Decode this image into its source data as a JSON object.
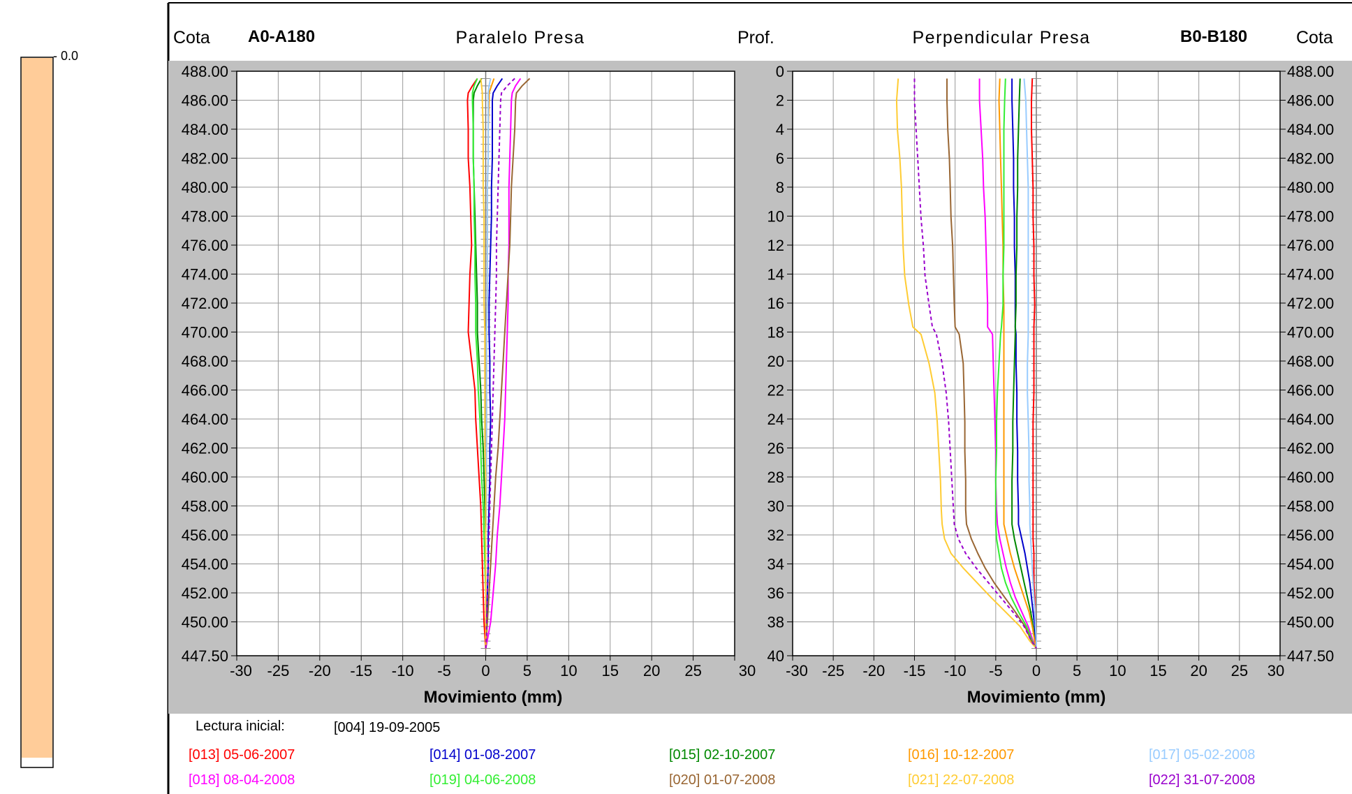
{
  "header": {
    "left_axis_label": "Cota",
    "left_sensor": "A0-A180",
    "left_title": "Paralelo Presa",
    "depth_label": "Prof.",
    "right_title": "Perpendicular Presa",
    "right_sensor": "B0-B180",
    "right_axis_label": "Cota"
  },
  "scale_bar": {
    "label": "- 0.0",
    "color": "#FFCC99"
  },
  "legend": {
    "initial_label": "Lectura inicial:",
    "initial_value": "[004]  19-09-2005"
  },
  "chart_data": [
    {
      "type": "line",
      "name": "Paralelo Presa",
      "title": "",
      "xlabel": "Movimiento (mm)",
      "ylabel": "Cota",
      "xlim": [
        -30,
        30
      ],
      "ylim": [
        447.5,
        488.0
      ],
      "xticks": [
        "-30",
        "-25",
        "-20",
        "-15",
        "-10",
        "-5",
        "0",
        "5",
        "10",
        "15",
        "20",
        "25",
        "30"
      ],
      "yticks": [
        "488.00",
        "486.00",
        "484.00",
        "482.00",
        "480.00",
        "478.00",
        "476.00",
        "474.00",
        "472.00",
        "470.00",
        "468.00",
        "466.00",
        "464.00",
        "462.00",
        "460.00",
        "458.00",
        "456.00",
        "454.00",
        "452.00",
        "450.00",
        "447.50"
      ],
      "grid": true,
      "y": [
        487.5,
        487.0,
        486.5,
        486.0,
        484.0,
        482.0,
        480.0,
        478.0,
        476.0,
        474.0,
        472.0,
        470.0,
        468.0,
        466.0,
        464.0,
        462.0,
        460.0,
        458.0,
        456.0,
        454.0,
        452.0,
        450.0,
        449.0,
        448.0
      ],
      "series": [
        {
          "id": "013",
          "date": "05-06-2007",
          "color": "#FF0000",
          "dashed": false,
          "values": [
            -1.0,
            -1.6,
            -2.1,
            -2.2,
            -2.1,
            -2.1,
            -1.9,
            -1.8,
            -1.7,
            -1.9,
            -2.0,
            -2.1,
            -1.7,
            -1.3,
            -1.2,
            -1.0,
            -0.8,
            -0.6,
            -0.5,
            -0.4,
            -0.3,
            -0.2,
            -0.1,
            0.0
          ]
        },
        {
          "id": "014",
          "date": "01-08-2007",
          "color": "#0000CC",
          "dashed": false,
          "values": [
            2.0,
            1.4,
            0.9,
            0.8,
            0.8,
            0.8,
            0.7,
            0.7,
            0.6,
            0.5,
            0.4,
            0.4,
            0.5,
            0.5,
            0.6,
            0.5,
            0.5,
            0.4,
            0.3,
            0.3,
            0.2,
            0.1,
            0.1,
            0.0
          ]
        },
        {
          "id": "015",
          "date": "02-10-2007",
          "color": "#008800",
          "dashed": false,
          "values": [
            -0.5,
            -1.0,
            -1.4,
            -1.5,
            -1.5,
            -1.5,
            -1.4,
            -1.3,
            -1.2,
            -1.1,
            -1.0,
            -1.0,
            -0.8,
            -0.6,
            -0.5,
            -0.3,
            -0.2,
            -0.1,
            0.0,
            0.0,
            0.0,
            0.0,
            0.0,
            0.0
          ]
        },
        {
          "id": "016",
          "date": "10-12-2007",
          "color": "#FF9900",
          "dashed": false,
          "values": [
            1.0,
            0.7,
            0.4,
            0.4,
            0.3,
            0.3,
            0.2,
            0.2,
            0.2,
            0.2,
            0.2,
            0.1,
            0.1,
            0.1,
            0.1,
            0.1,
            0.1,
            0.0,
            0.0,
            0.0,
            0.0,
            0.0,
            0.0,
            0.0
          ]
        },
        {
          "id": "017",
          "date": "05-02-2008",
          "color": "#99CCFF",
          "dashed": false,
          "values": [
            0.6,
            0.4,
            0.3,
            0.3,
            0.3,
            0.3,
            0.2,
            0.2,
            0.2,
            0.2,
            0.2,
            0.1,
            0.1,
            0.1,
            0.1,
            0.1,
            0.1,
            0.1,
            0.0,
            0.0,
            0.0,
            0.0,
            0.0,
            0.0
          ]
        },
        {
          "id": "018",
          "date": "08-04-2008",
          "color": "#FF00FF",
          "dashed": false,
          "values": [
            4.2,
            3.6,
            3.2,
            3.1,
            3.0,
            2.9,
            2.8,
            2.8,
            2.8,
            2.7,
            2.7,
            2.6,
            2.5,
            2.4,
            2.3,
            2.1,
            1.9,
            1.7,
            1.4,
            1.2,
            0.9,
            0.6,
            0.3,
            0.0
          ]
        },
        {
          "id": "019",
          "date": "04-06-2008",
          "color": "#33EE33",
          "dashed": false,
          "values": [
            -1.0,
            -1.4,
            -1.6,
            -1.6,
            -1.5,
            -1.5,
            -1.4,
            -1.4,
            -1.3,
            -1.3,
            -1.2,
            -1.2,
            -1.0,
            -0.9,
            -0.7,
            -0.6,
            -0.5,
            -0.3,
            -0.2,
            -0.1,
            0.0,
            0.0,
            0.0,
            0.0
          ]
        },
        {
          "id": "020",
          "date": "01-07-2008",
          "color": "#996633",
          "dashed": false,
          "values": [
            5.3,
            4.4,
            3.7,
            3.6,
            3.5,
            3.3,
            3.1,
            3.0,
            2.9,
            2.7,
            2.5,
            2.3,
            2.1,
            1.9,
            1.7,
            1.5,
            1.2,
            1.0,
            0.8,
            0.6,
            0.4,
            0.2,
            0.1,
            0.0
          ]
        },
        {
          "id": "021",
          "date": "22-07-2008",
          "color": "#FFCC33",
          "dashed": false,
          "values": [
            -0.6,
            -0.5,
            -0.4,
            -0.4,
            -0.3,
            -0.3,
            -0.3,
            -0.2,
            -0.2,
            -0.2,
            -0.2,
            -0.1,
            -0.1,
            -0.1,
            -0.1,
            -0.1,
            0.0,
            0.0,
            0.0,
            0.0,
            0.0,
            0.0,
            0.0,
            0.0
          ]
        },
        {
          "id": "022",
          "date": "31-07-2008",
          "color": "#9900CC",
          "dashed": true,
          "values": [
            3.5,
            2.6,
            1.9,
            1.8,
            1.7,
            1.6,
            1.5,
            1.4,
            1.3,
            1.3,
            1.2,
            1.1,
            1.0,
            0.9,
            0.8,
            0.7,
            0.6,
            0.5,
            0.4,
            0.3,
            0.2,
            0.1,
            0.1,
            0.0
          ]
        }
      ]
    },
    {
      "type": "line",
      "name": "Perpendicular Presa",
      "title": "",
      "xlabel": "Movimiento (mm)",
      "ylabel": "Prof.",
      "ylabel_right": "Cota",
      "xlim": [
        -30,
        30
      ],
      "ylim": [
        0,
        40
      ],
      "xticks": [
        "-30",
        "-25",
        "-20",
        "-15",
        "-10",
        "-5",
        "0",
        "5",
        "10",
        "15",
        "20",
        "25",
        "30"
      ],
      "yticks_left": [
        "0",
        "2",
        "4",
        "6",
        "8",
        "10",
        "12",
        "14",
        "16",
        "18",
        "20",
        "22",
        "24",
        "26",
        "28",
        "30",
        "32",
        "34",
        "36",
        "38",
        "40"
      ],
      "yticks_right": [
        "488.00",
        "486.00",
        "484.00",
        "482.00",
        "480.00",
        "478.00",
        "476.00",
        "474.00",
        "472.00",
        "470.00",
        "468.00",
        "466.00",
        "464.00",
        "462.00",
        "460.00",
        "458.00",
        "456.00",
        "454.00",
        "452.00",
        "450.00",
        "447.50"
      ],
      "grid": true,
      "depth": [
        0.5,
        2,
        4,
        6,
        8,
        10,
        12,
        14,
        16,
        17.5,
        18,
        20,
        22,
        24,
        26,
        28,
        30,
        31,
        32,
        33,
        34,
        35,
        36,
        37,
        38,
        39,
        39.5
      ],
      "series": [
        {
          "id": "013",
          "color": "#FF0000",
          "dashed": false,
          "values": [
            -0.5,
            -0.6,
            -0.6,
            -0.5,
            -0.4,
            -0.4,
            -0.3,
            -0.3,
            -0.2,
            -0.3,
            -0.3,
            -0.3,
            -0.3,
            -0.4,
            -0.4,
            -0.4,
            -0.4,
            -0.4,
            -0.4,
            -0.3,
            -0.3,
            -0.3,
            -0.2,
            -0.2,
            -0.1,
            0.0,
            0.0
          ]
        },
        {
          "id": "014",
          "color": "#0000CC",
          "dashed": false,
          "values": [
            -3.0,
            -3.0,
            -2.9,
            -2.8,
            -2.8,
            -2.7,
            -2.7,
            -2.6,
            -2.6,
            -2.6,
            -2.5,
            -2.5,
            -2.4,
            -2.4,
            -2.3,
            -2.3,
            -2.2,
            -2.2,
            -1.8,
            -1.4,
            -1.1,
            -0.8,
            -0.6,
            -0.4,
            -0.2,
            -0.1,
            0.0
          ]
        },
        {
          "id": "015",
          "color": "#008800",
          "dashed": false,
          "values": [
            -2.0,
            -2.1,
            -2.2,
            -2.3,
            -2.3,
            -2.4,
            -2.4,
            -2.5,
            -2.5,
            -2.6,
            -2.6,
            -2.7,
            -2.8,
            -2.9,
            -2.9,
            -3.0,
            -3.0,
            -3.0,
            -2.7,
            -2.3,
            -1.9,
            -1.5,
            -1.1,
            -0.7,
            -0.4,
            -0.2,
            0.0
          ]
        },
        {
          "id": "016",
          "color": "#FF9900",
          "dashed": false,
          "values": [
            -4.5,
            -4.6,
            -4.5,
            -4.4,
            -4.3,
            -4.2,
            -4.1,
            -4.1,
            -4.0,
            -4.0,
            -4.0,
            -4.0,
            -4.0,
            -4.0,
            -4.0,
            -4.0,
            -4.0,
            -4.0,
            -3.6,
            -3.2,
            -2.7,
            -2.1,
            -1.5,
            -0.9,
            -0.5,
            -0.2,
            0.0
          ]
        },
        {
          "id": "017",
          "color": "#99CCFF",
          "dashed": false,
          "values": [
            -1.5,
            -1.3,
            -1.2,
            -1.1,
            -1.0,
            -1.0,
            -1.0,
            -1.0,
            -1.0,
            -1.0,
            -1.0,
            -1.1,
            -1.1,
            -1.0,
            -0.9,
            -0.9,
            -0.8,
            -0.8,
            -0.7,
            -0.6,
            -0.5,
            -0.4,
            -0.3,
            -0.2,
            -0.1,
            0.0,
            0.0
          ]
        },
        {
          "id": "018",
          "color": "#FF00FF",
          "dashed": false,
          "values": [
            -7.0,
            -7.0,
            -6.8,
            -6.6,
            -6.5,
            -6.3,
            -6.2,
            -6.1,
            -6.0,
            -6.0,
            -5.4,
            -5.3,
            -5.2,
            -5.1,
            -5.0,
            -5.0,
            -4.9,
            -4.8,
            -4.5,
            -4.1,
            -3.7,
            -3.2,
            -2.6,
            -1.8,
            -1.0,
            -0.4,
            0.0
          ]
        },
        {
          "id": "019",
          "color": "#33EE33",
          "dashed": false,
          "values": [
            -3.8,
            -3.9,
            -4.0,
            -4.0,
            -4.0,
            -4.0,
            -4.0,
            -4.1,
            -4.1,
            -4.3,
            -4.4,
            -4.6,
            -4.8,
            -4.9,
            -4.9,
            -5.0,
            -5.0,
            -5.0,
            -4.9,
            -4.6,
            -4.3,
            -3.8,
            -3.1,
            -2.2,
            -1.2,
            -0.5,
            0.0
          ]
        },
        {
          "id": "020",
          "color": "#996633",
          "dashed": false,
          "values": [
            -11.0,
            -11.0,
            -10.9,
            -10.7,
            -10.6,
            -10.5,
            -10.3,
            -10.2,
            -10.1,
            -10.0,
            -9.5,
            -9.0,
            -8.9,
            -8.8,
            -8.8,
            -8.7,
            -8.7,
            -8.6,
            -8.0,
            -7.2,
            -6.3,
            -5.2,
            -3.9,
            -2.6,
            -1.4,
            -0.6,
            0.0
          ]
        },
        {
          "id": "021",
          "color": "#FFCC33",
          "dashed": false,
          "values": [
            -17.0,
            -17.2,
            -17.1,
            -16.8,
            -16.6,
            -16.5,
            -16.4,
            -16.2,
            -15.7,
            -15.2,
            -14.2,
            -13.2,
            -12.5,
            -12.2,
            -12.0,
            -11.8,
            -11.7,
            -11.6,
            -11.3,
            -10.5,
            -9.0,
            -7.3,
            -5.6,
            -3.8,
            -2.0,
            -0.8,
            0.0
          ]
        },
        {
          "id": "022",
          "color": "#9900CC",
          "dashed": true,
          "values": [
            -15.0,
            -15.0,
            -14.8,
            -14.6,
            -14.4,
            -14.2,
            -13.9,
            -13.7,
            -13.2,
            -12.8,
            -12.3,
            -11.6,
            -11.1,
            -10.8,
            -10.6,
            -10.4,
            -10.2,
            -10.1,
            -9.6,
            -8.7,
            -7.4,
            -5.9,
            -4.4,
            -2.9,
            -1.5,
            -0.6,
            0.0
          ]
        }
      ]
    }
  ]
}
